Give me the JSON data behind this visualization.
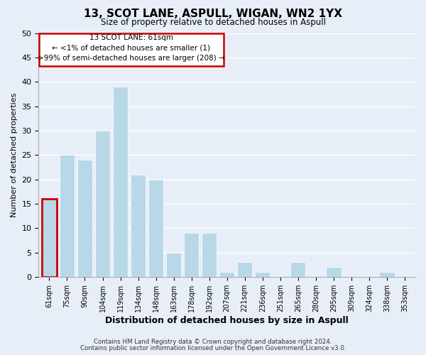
{
  "title": "13, SCOT LANE, ASPULL, WIGAN, WN2 1YX",
  "subtitle": "Size of property relative to detached houses in Aspull",
  "xlabel": "Distribution of detached houses by size in Aspull",
  "ylabel": "Number of detached properties",
  "bar_labels": [
    "61sqm",
    "75sqm",
    "90sqm",
    "104sqm",
    "119sqm",
    "134sqm",
    "148sqm",
    "163sqm",
    "178sqm",
    "192sqm",
    "207sqm",
    "221sqm",
    "236sqm",
    "251sqm",
    "265sqm",
    "280sqm",
    "295sqm",
    "309sqm",
    "324sqm",
    "338sqm",
    "353sqm"
  ],
  "bar_values": [
    16,
    25,
    24,
    30,
    39,
    21,
    20,
    5,
    9,
    9,
    1,
    3,
    1,
    0,
    3,
    0,
    2,
    0,
    0,
    1,
    0
  ],
  "bar_color": "#b8d8e8",
  "highlight_bar_index": 0,
  "highlight_outline_color": "#cc0000",
  "ylim": [
    0,
    50
  ],
  "yticks": [
    0,
    5,
    10,
    15,
    20,
    25,
    30,
    35,
    40,
    45,
    50
  ],
  "ann_line1": "13 SCOT LANE: 61sqm",
  "ann_line2": "← <1% of detached houses are smaller (1)",
  "ann_line3": ">99% of semi-detached houses are larger (208) →",
  "footer_line1": "Contains HM Land Registry data © Crown copyright and database right 2024.",
  "footer_line2": "Contains public sector information licensed under the Open Government Licence v3.0.",
  "bg_color": "#e8eef8",
  "grid_color": "#ffffff"
}
